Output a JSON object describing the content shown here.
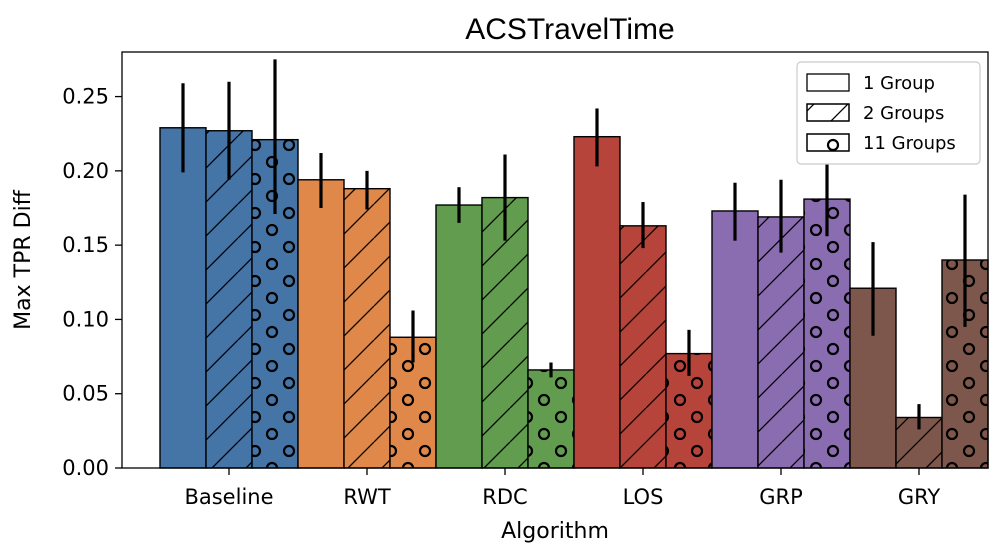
{
  "chart_data": {
    "type": "bar",
    "title": "ACSTravelTime",
    "xlabel": "Algorithm",
    "ylabel": "Max TPR Diff",
    "ylim": [
      0,
      0.28
    ],
    "yticks": [
      "0.00",
      "0.05",
      "0.10",
      "0.15",
      "0.20",
      "0.25"
    ],
    "categories": [
      "Baseline",
      "RWT",
      "RDC",
      "LOS",
      "GRP",
      "GRY"
    ],
    "category_colors": [
      "#4574a7",
      "#e0884a",
      "#629c4e",
      "#b6443a",
      "#8a6cb0",
      "#7d574b"
    ],
    "legend_position": "top-right",
    "grid": false,
    "series": [
      {
        "name": "1 Group",
        "hatch": "none",
        "values": [
          0.229,
          0.194,
          0.177,
          0.223,
          0.173,
          0.121
        ],
        "err_low": [
          0.199,
          0.175,
          0.165,
          0.203,
          0.153,
          0.089
        ],
        "err_high": [
          0.259,
          0.212,
          0.189,
          0.242,
          0.192,
          0.152
        ]
      },
      {
        "name": "2 Groups",
        "hatch": "diagonal",
        "values": [
          0.227,
          0.188,
          0.182,
          0.163,
          0.169,
          0.034
        ],
        "err_low": [
          0.194,
          0.174,
          0.153,
          0.148,
          0.145,
          0.026
        ],
        "err_high": [
          0.26,
          0.2,
          0.211,
          0.179,
          0.194,
          0.043
        ]
      },
      {
        "name": "11 Groups",
        "hatch": "circles",
        "values": [
          0.221,
          0.088,
          0.066,
          0.077,
          0.181,
          0.14
        ],
        "err_low": [
          0.171,
          0.071,
          0.061,
          0.062,
          0.156,
          0.095
        ],
        "err_high": [
          0.275,
          0.106,
          0.071,
          0.093,
          0.206,
          0.184
        ]
      }
    ]
  }
}
